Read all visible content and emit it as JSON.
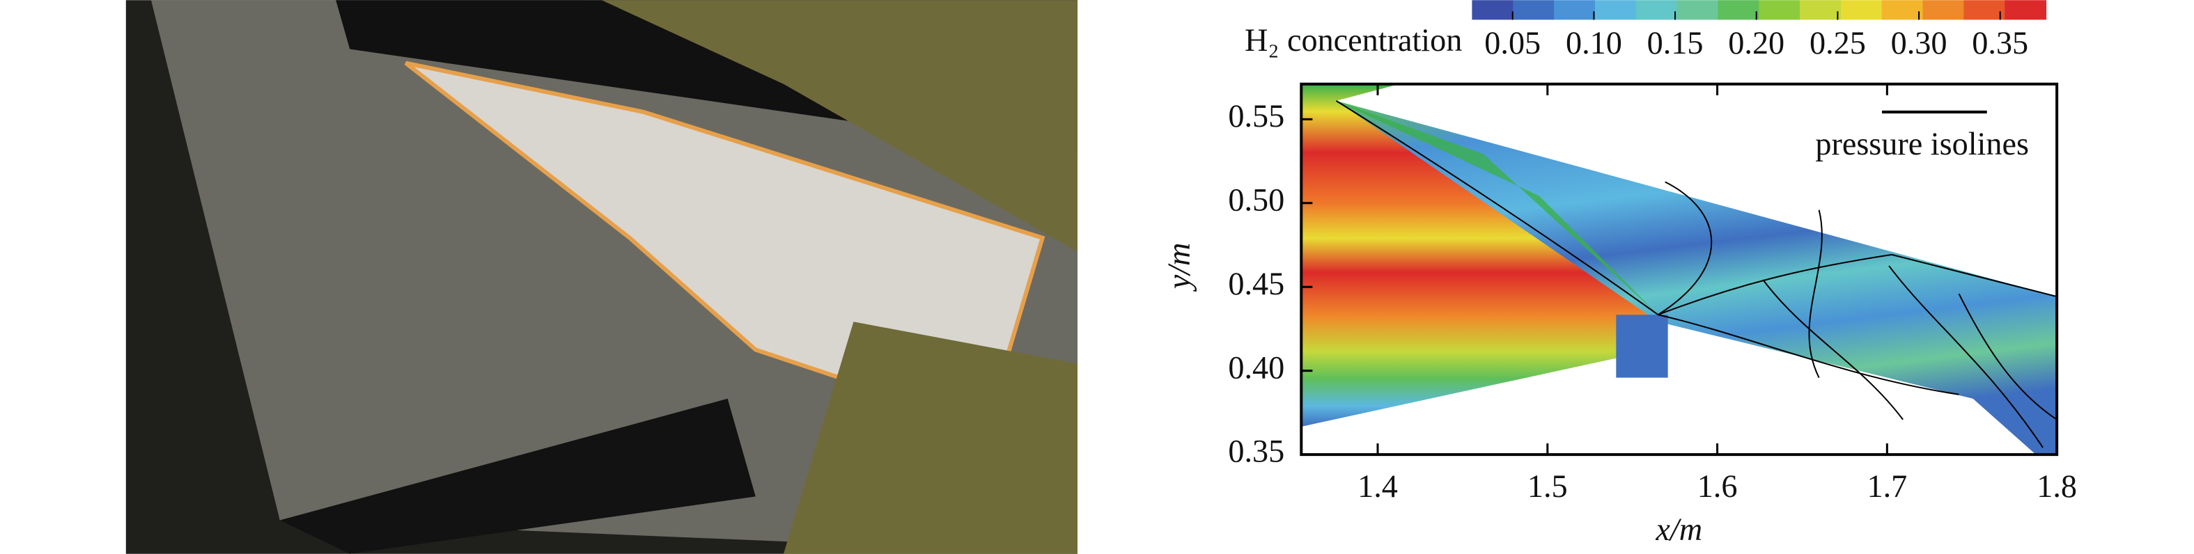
{
  "chart_data": {
    "type": "contour",
    "xlabel": "x/m",
    "ylabel": "y/m",
    "xlim": [
      1.355,
      1.8
    ],
    "xticks": [
      1.4,
      1.5,
      1.6,
      1.7,
      1.8
    ],
    "ylim": [
      0.35,
      0.571
    ],
    "yticks": [
      0.35,
      {
        "value": 0.4,
        "label": "0.40"
      },
      0.45,
      {
        "value": 0.5,
        "label": "0.50"
      },
      0.55
    ],
    "colorbar": {
      "label": "H₂ concentration",
      "clim": [
        0.025,
        0.378
      ],
      "ticks": [
        0.05,
        {
          "value": 0.1,
          "label": "0.10"
        },
        0.15,
        {
          "value": 0.2,
          "label": "0.20"
        },
        0.25,
        {
          "value": 0.3,
          "label": "0.30"
        },
        0.35
      ],
      "colormap": [
        "#3b4fa8",
        "#3f6fc0",
        "#4a93d6",
        "#5cb8e0",
        "#63c6c8",
        "#6bc79a",
        "#5fbf5a",
        "#8ccc3c",
        "#c6d83a",
        "#e8dc32",
        "#f2b52c",
        "#ef8a2a",
        "#e8572a",
        "#dc2a2a"
      ]
    },
    "legend": {
      "label": "pressure isolines",
      "color": "#000000"
    }
  }
}
